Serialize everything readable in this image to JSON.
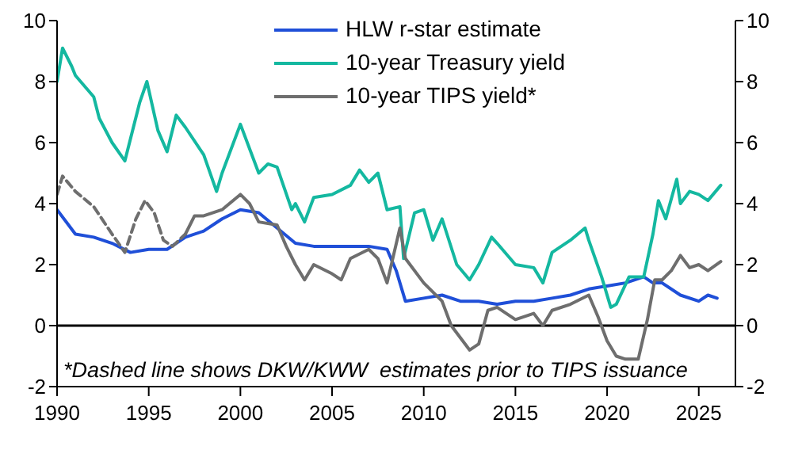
{
  "chart_data": {
    "type": "line",
    "xlim": [
      1990,
      2027
    ],
    "xticks": [
      1990,
      1995,
      2000,
      2005,
      2010,
      2015,
      2020,
      2025
    ],
    "ylim": [
      -2,
      10
    ],
    "yticks": [
      -2,
      0,
      2,
      4,
      6,
      8,
      10
    ],
    "y2lim": [
      -2,
      10
    ],
    "y2ticks": [
      -2,
      0,
      2,
      4,
      6,
      8,
      10
    ],
    "legend": "top",
    "marker": "none",
    "ref_lines": [
      {
        "axis": "y",
        "value": 0,
        "color": "#000000"
      }
    ],
    "annotations": [
      "*Dashed line shows DKW/KWW  estimates prior to TIPS issuance"
    ],
    "series": [
      {
        "name": "HLW r-star estimate",
        "color": "#1f4fd8",
        "line_style": "solid",
        "x": [
          1990,
          1991,
          1992,
          1993,
          1994,
          1995,
          1996,
          1997,
          1998,
          1999,
          2000,
          2001,
          2002,
          2003,
          2004,
          2005,
          2006,
          2007,
          2008,
          2008.5,
          2009,
          2010,
          2011,
          2012,
          2013,
          2014,
          2015,
          2016,
          2017,
          2018,
          2019,
          2020,
          2021,
          2022,
          2022.5,
          2023,
          2024,
          2025,
          2025.5,
          2026
        ],
        "values": [
          3.8,
          3.0,
          2.9,
          2.7,
          2.4,
          2.5,
          2.5,
          2.9,
          3.1,
          3.5,
          3.8,
          3.7,
          3.2,
          2.7,
          2.6,
          2.6,
          2.6,
          2.6,
          2.5,
          1.8,
          0.8,
          0.9,
          1.0,
          0.8,
          0.8,
          0.7,
          0.8,
          0.8,
          0.9,
          1.0,
          1.2,
          1.3,
          1.4,
          1.6,
          1.4,
          1.4,
          1.0,
          0.8,
          1.0,
          0.9
        ]
      },
      {
        "name": "10-year Treasury yield",
        "color": "#14b8a0",
        "line_style": "solid",
        "x": [
          1990,
          1990.3,
          1990.8,
          1991,
          1992,
          1992.3,
          1993,
          1993.7,
          1994.5,
          1994.9,
          1995.5,
          1996,
          1996.5,
          1997,
          1998,
          1998.7,
          1999,
          2000,
          2001,
          2001.5,
          2002,
          2002.8,
          2003,
          2003.5,
          2004,
          2005,
          2006,
          2006.5,
          2007,
          2007.5,
          2008,
          2008.7,
          2008.9,
          2009.5,
          2010,
          2010.5,
          2011,
          2011.8,
          2012.5,
          2013,
          2013.7,
          2014,
          2015,
          2016,
          2016.5,
          2017,
          2018,
          2018.8,
          2019,
          2019.7,
          2020.2,
          2020.5,
          2021.2,
          2022,
          2022.5,
          2022.8,
          2023.2,
          2023.8,
          2024,
          2024.5,
          2025,
          2025.5,
          2026.2
        ],
        "values": [
          8.0,
          9.1,
          8.5,
          8.2,
          7.5,
          6.8,
          6.0,
          5.4,
          7.3,
          8.0,
          6.4,
          5.7,
          6.9,
          6.5,
          5.6,
          4.4,
          5.0,
          6.6,
          5.0,
          5.3,
          5.2,
          3.8,
          4.0,
          3.4,
          4.2,
          4.3,
          4.6,
          5.1,
          4.7,
          5.0,
          3.8,
          3.9,
          2.2,
          3.7,
          3.8,
          2.8,
          3.5,
          2.0,
          1.5,
          2.0,
          2.9,
          2.7,
          2.0,
          1.9,
          1.4,
          2.4,
          2.8,
          3.2,
          2.8,
          1.6,
          0.6,
          0.7,
          1.6,
          1.6,
          3.0,
          4.1,
          3.5,
          4.8,
          4.0,
          4.4,
          4.3,
          4.1,
          4.6
        ]
      },
      {
        "name": "10-year TIPS yield*",
        "color": "#6e6e6e",
        "line_style": "solid",
        "x": [
          1997,
          1997.5,
          1998,
          1999,
          2000,
          2000.5,
          2001,
          2002,
          2002.5,
          2003,
          2003.5,
          2004,
          2005,
          2005.5,
          2006,
          2007,
          2007.5,
          2008,
          2008.7,
          2009,
          2010,
          2011,
          2011.5,
          2012.5,
          2013,
          2013.5,
          2014,
          2015,
          2016,
          2016.5,
          2017,
          2018,
          2019,
          2019.5,
          2020,
          2020.5,
          2021,
          2021.7,
          2022.2,
          2022.6,
          2023,
          2023.5,
          2024,
          2024.5,
          2025,
          2025.5,
          2026.2
        ],
        "values": [
          3.0,
          3.6,
          3.6,
          3.8,
          4.3,
          4.0,
          3.4,
          3.3,
          2.6,
          2.0,
          1.5,
          2.0,
          1.7,
          1.5,
          2.2,
          2.5,
          2.2,
          1.4,
          3.2,
          2.2,
          1.4,
          0.8,
          0.0,
          -0.8,
          -0.6,
          0.5,
          0.6,
          0.2,
          0.4,
          0.0,
          0.5,
          0.7,
          1.0,
          0.3,
          -0.5,
          -1.0,
          -1.1,
          -1.1,
          0.2,
          1.5,
          1.5,
          1.8,
          2.3,
          1.9,
          2.0,
          1.8,
          2.1
        ]
      },
      {
        "color": "#6e6e6e",
        "line_style": "dashed",
        "x": [
          1990,
          1990.3,
          1991,
          1992,
          1993,
          1993.7,
          1994.3,
          1994.8,
          1995.3,
          1995.8,
          1996.3,
          1997
        ],
        "values": [
          4.3,
          4.9,
          4.4,
          3.9,
          3.0,
          2.4,
          3.5,
          4.1,
          3.7,
          2.8,
          2.6,
          3.0
        ]
      }
    ]
  }
}
